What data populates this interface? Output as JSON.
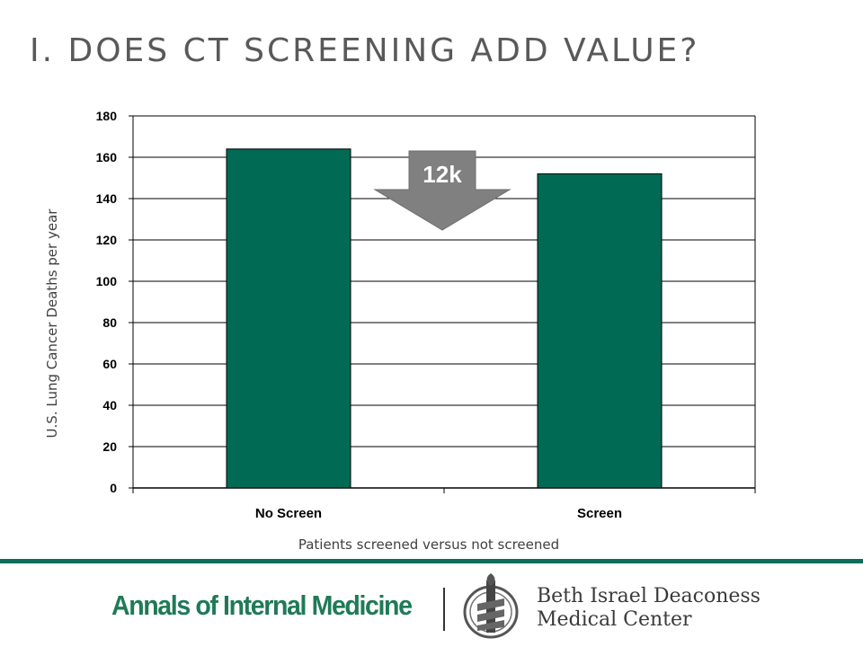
{
  "slide": {
    "title": "I. DOES CT SCREENING ADD VALUE?"
  },
  "chart_data": {
    "type": "bar",
    "categories": [
      "No Screen",
      "Screen"
    ],
    "values": [
      164,
      152
    ],
    "ylim": [
      0,
      180
    ],
    "yticks": [
      0,
      20,
      40,
      60,
      80,
      100,
      120,
      140,
      160,
      180
    ],
    "ylabel": "U.S. Lung Cancer Deaths per year",
    "xlabel": "Patients screened versus not screened",
    "grid": true,
    "annotation": {
      "text": "12k"
    },
    "colors": {
      "bar": "#006a54",
      "arrow": "#808080",
      "grid": "#000000"
    }
  },
  "footer": {
    "journal_logo_text": "Annals of Internal Medicine",
    "hospital_logo_line1": "Beth Israel Deaconess",
    "hospital_logo_line2": "Medical Center",
    "divider_color": "#0d6e59"
  }
}
